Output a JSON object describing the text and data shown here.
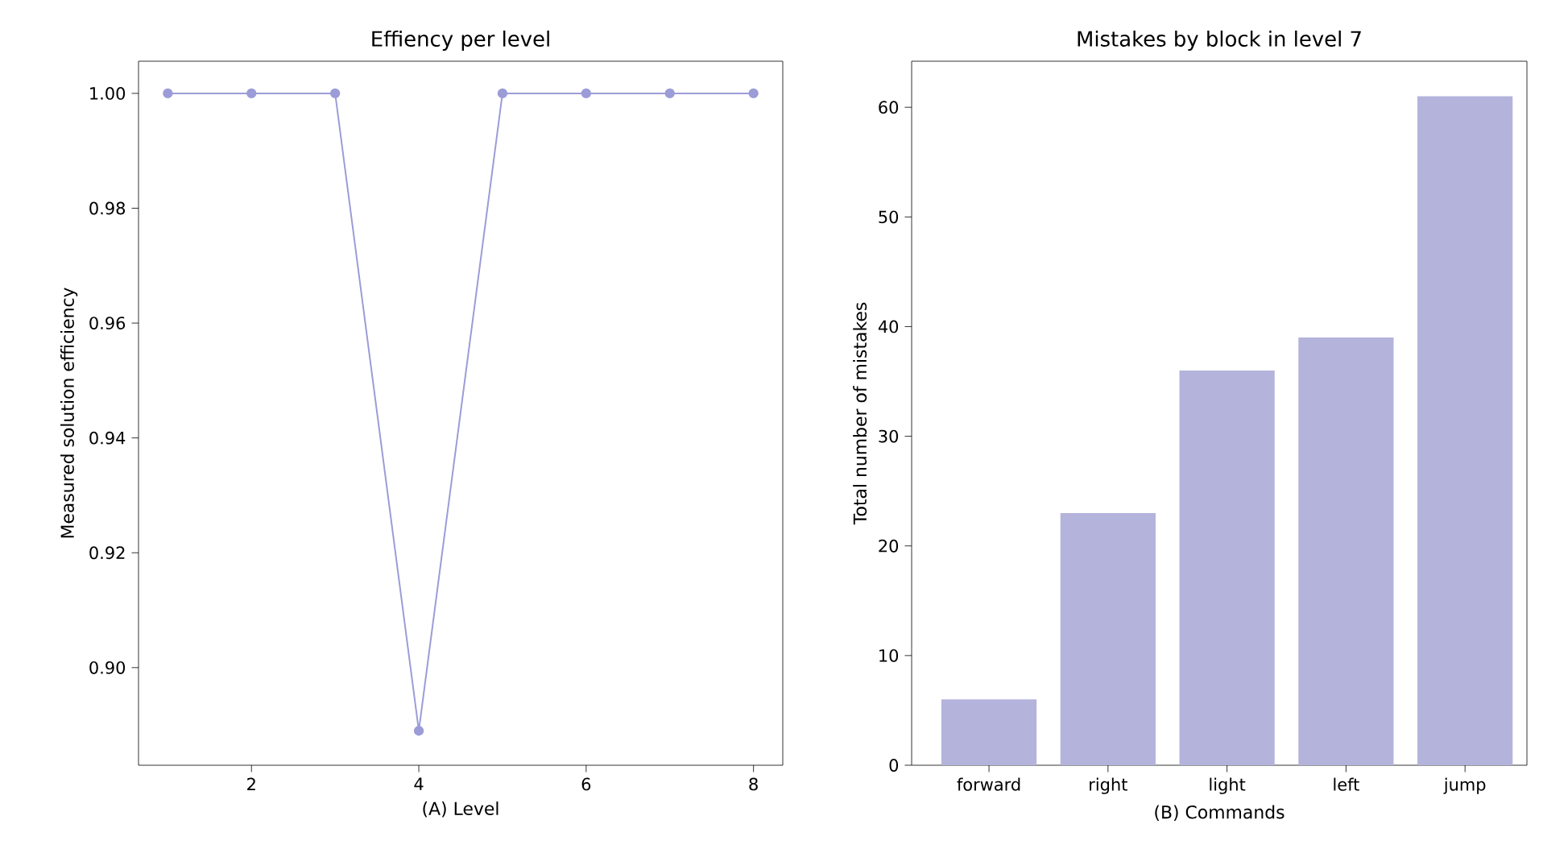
{
  "chart_data": [
    {
      "type": "line",
      "title": "Effiency per level",
      "xlabel": "(A) Level",
      "ylabel": "Measured solution efficiency",
      "x": [
        1,
        2,
        3,
        4,
        5,
        6,
        7,
        8
      ],
      "series": [
        {
          "color": "#9c9cd8",
          "values": [
            1.0,
            1.0,
            1.0,
            0.889,
            1.0,
            1.0,
            1.0,
            1.0
          ]
        }
      ],
      "marker": "circle",
      "xlim": [
        0.65,
        8.35
      ],
      "ylim": [
        0.883,
        1.0056
      ],
      "xticks": [
        2,
        4,
        6,
        8
      ],
      "yticks": [
        {
          "value": 0.9,
          "label": "0.90"
        },
        {
          "value": 0.92,
          "label": "0.92"
        },
        {
          "value": 0.94,
          "label": "0.94"
        },
        {
          "value": 0.96,
          "label": "0.96"
        },
        {
          "value": 0.98,
          "label": "0.98"
        },
        {
          "value": 1.0,
          "label": "1.00"
        }
      ]
    },
    {
      "type": "bar",
      "title": "Mistakes by block in level 7",
      "xlabel": "(B) Commands",
      "ylabel": "Total number of mistakes",
      "categories": [
        "forward",
        "right",
        "light",
        "left",
        "jump"
      ],
      "series": [
        {
          "color": "#b3b3dc",
          "values": [
            6,
            23,
            36,
            39,
            61
          ]
        }
      ],
      "ylim": [
        0,
        64.2
      ],
      "yticks": [
        0,
        10,
        20,
        30,
        40,
        50,
        60
      ]
    }
  ]
}
